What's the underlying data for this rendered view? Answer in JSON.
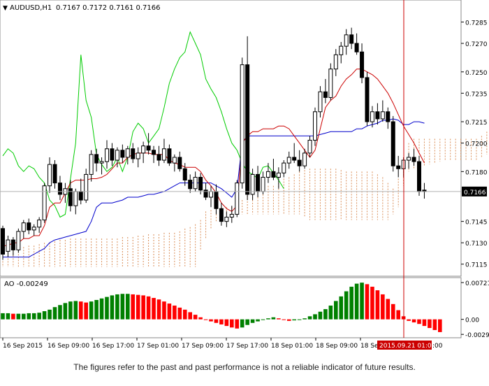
{
  "header": {
    "symbol_label": "AUDUSD,H1",
    "ohlc_label": "0.7167 0.7172 0.7161 0.7166"
  },
  "price_axis": {
    "ticks": [
      "0.7285",
      "0.7270",
      "0.7250",
      "0.7235",
      "0.7215",
      "0.7200",
      "0.7180",
      "0.7166",
      "0.7145",
      "0.7130",
      "0.7115"
    ],
    "current_price": "0.7166"
  },
  "oscillator": {
    "label": "AO -0.00249",
    "ticks": [
      "0.00721",
      "0.00",
      "-0.00295"
    ]
  },
  "time_axis": {
    "labels": [
      "16 Sep 2015",
      "16 Sep 09:00",
      "16 Sep 17:00",
      "17 Sep 01:00",
      "17 Sep 09:00",
      "17 Sep 17:00",
      "18 Sep 01:00",
      "18 Sep 09:00",
      "18 Se"
    ],
    "crosshair_label": "2015.09.21 01:00",
    "crosshair_suffix": ":00"
  },
  "colors": {
    "bull": "#ffffff",
    "bear": "#000000",
    "tenkan": "#cc0000",
    "kijun": "#0000cc",
    "chikou": "#00cc00",
    "cloud": "#d98c55",
    "ao_up": "#008000",
    "ao_down": "#ff0000",
    "crosshair": "#cc0000",
    "price_tag_bg": "#000000"
  },
  "chart_data": {
    "type": "candlestick",
    "symbol": "AUDUSD",
    "timeframe": "H1",
    "ylim": [
      0.7108,
      0.7298
    ],
    "candles": [
      [
        0.714,
        0.7142,
        0.7118,
        0.7122
      ],
      [
        0.7124,
        0.7135,
        0.712,
        0.7132
      ],
      [
        0.7132,
        0.7134,
        0.7121,
        0.7125
      ],
      [
        0.7125,
        0.714,
        0.7123,
        0.7138
      ],
      [
        0.7138,
        0.7146,
        0.7133,
        0.7144
      ],
      [
        0.7144,
        0.7147,
        0.7136,
        0.7139
      ],
      [
        0.7139,
        0.7143,
        0.7135,
        0.7141
      ],
      [
        0.7141,
        0.7148,
        0.7137,
        0.7146
      ],
      [
        0.7146,
        0.7172,
        0.7144,
        0.717
      ],
      [
        0.717,
        0.719,
        0.7165,
        0.7185
      ],
      [
        0.7185,
        0.7188,
        0.7168,
        0.7172
      ],
      [
        0.7172,
        0.7177,
        0.716,
        0.7164
      ],
      [
        0.7164,
        0.7172,
        0.7158,
        0.7168
      ],
      [
        0.7168,
        0.7174,
        0.7152,
        0.7156
      ],
      [
        0.7156,
        0.7168,
        0.715,
        0.7166
      ],
      [
        0.7166,
        0.7175,
        0.7157,
        0.716
      ],
      [
        0.716,
        0.7182,
        0.7158,
        0.7178
      ],
      [
        0.7178,
        0.7195,
        0.7173,
        0.7192
      ],
      [
        0.7192,
        0.7196,
        0.718,
        0.7186
      ],
      [
        0.7186,
        0.719,
        0.7178,
        0.7187
      ],
      [
        0.7187,
        0.7202,
        0.7182,
        0.7196
      ],
      [
        0.7196,
        0.72,
        0.7184,
        0.7188
      ],
      [
        0.7188,
        0.7197,
        0.7183,
        0.7195
      ],
      [
        0.7195,
        0.7199,
        0.7186,
        0.719
      ],
      [
        0.719,
        0.7198,
        0.7185,
        0.7196
      ],
      [
        0.7196,
        0.72,
        0.7186,
        0.7189
      ],
      [
        0.7189,
        0.7197,
        0.7183,
        0.7193
      ],
      [
        0.7193,
        0.7201,
        0.7186,
        0.7198
      ],
      [
        0.7198,
        0.7207,
        0.7192,
        0.7195
      ],
      [
        0.7195,
        0.7198,
        0.7186,
        0.7192
      ],
      [
        0.7192,
        0.7198,
        0.7184,
        0.7188
      ],
      [
        0.7188,
        0.7203,
        0.7186,
        0.7196
      ],
      [
        0.7196,
        0.7199,
        0.7184,
        0.7186
      ],
      [
        0.7186,
        0.7192,
        0.718,
        0.719
      ],
      [
        0.719,
        0.7194,
        0.718,
        0.7182
      ],
      [
        0.7182,
        0.7186,
        0.717,
        0.7174
      ],
      [
        0.7174,
        0.7178,
        0.7165,
        0.7168
      ],
      [
        0.7168,
        0.718,
        0.7166,
        0.7176
      ],
      [
        0.7176,
        0.7179,
        0.7164,
        0.7167
      ],
      [
        0.7167,
        0.7172,
        0.716,
        0.7162
      ],
      [
        0.7162,
        0.717,
        0.7155,
        0.7166
      ],
      [
        0.7166,
        0.7171,
        0.715,
        0.7154
      ],
      [
        0.7154,
        0.7158,
        0.7142,
        0.7145
      ],
      [
        0.7145,
        0.7152,
        0.7141,
        0.7148
      ],
      [
        0.7148,
        0.7156,
        0.7144,
        0.715
      ],
      [
        0.715,
        0.7174,
        0.7148,
        0.7172
      ],
      [
        0.7172,
        0.726,
        0.7168,
        0.7255
      ],
      [
        0.7255,
        0.7275,
        0.716,
        0.7164
      ],
      [
        0.7164,
        0.7182,
        0.716,
        0.7178
      ],
      [
        0.7178,
        0.7184,
        0.7162,
        0.7166
      ],
      [
        0.7166,
        0.718,
        0.7164,
        0.7176
      ],
      [
        0.7176,
        0.7186,
        0.7172,
        0.718
      ],
      [
        0.718,
        0.7189,
        0.7174,
        0.7176
      ],
      [
        0.7176,
        0.7183,
        0.7168,
        0.7179
      ],
      [
        0.7179,
        0.7188,
        0.7176,
        0.7186
      ],
      [
        0.7186,
        0.7194,
        0.7182,
        0.719
      ],
      [
        0.719,
        0.72,
        0.7186,
        0.7188
      ],
      [
        0.7188,
        0.7195,
        0.718,
        0.7184
      ],
      [
        0.7184,
        0.7196,
        0.7182,
        0.7193
      ],
      [
        0.7193,
        0.7205,
        0.719,
        0.7202
      ],
      [
        0.7202,
        0.7225,
        0.7198,
        0.7222
      ],
      [
        0.7222,
        0.724,
        0.7218,
        0.7236
      ],
      [
        0.7236,
        0.7245,
        0.7228,
        0.7232
      ],
      [
        0.7232,
        0.7256,
        0.723,
        0.7252
      ],
      [
        0.7252,
        0.7266,
        0.7247,
        0.7262
      ],
      [
        0.7262,
        0.7271,
        0.7256,
        0.7268
      ],
      [
        0.7268,
        0.728,
        0.7262,
        0.7276
      ],
      [
        0.7276,
        0.7281,
        0.7266,
        0.727
      ],
      [
        0.727,
        0.7277,
        0.7262,
        0.7264
      ],
      [
        0.7264,
        0.727,
        0.7242,
        0.7246
      ],
      [
        0.7246,
        0.725,
        0.7212,
        0.7215
      ],
      [
        0.7215,
        0.7226,
        0.7211,
        0.7222
      ],
      [
        0.7222,
        0.7228,
        0.7213,
        0.7217
      ],
      [
        0.7217,
        0.723,
        0.7215,
        0.7222
      ],
      [
        0.7222,
        0.7225,
        0.721,
        0.7215
      ],
      [
        0.7215,
        0.7219,
        0.718,
        0.7184
      ],
      [
        0.7184,
        0.7191,
        0.7176,
        0.7182
      ],
      [
        0.7182,
        0.719,
        0.7176,
        0.7188
      ],
      [
        0.7188,
        0.7193,
        0.7182,
        0.719
      ],
      [
        0.719,
        0.7196,
        0.7184,
        0.7187
      ],
      [
        0.7187,
        0.7191,
        0.7163,
        0.7166
      ],
      [
        0.7167,
        0.7172,
        0.7161,
        0.7166
      ]
    ],
    "tenkan": [
      0.7128,
      0.7128,
      0.713,
      0.713,
      0.7133,
      0.7133,
      0.7135,
      0.7135,
      0.7142,
      0.7155,
      0.7158,
      0.7158,
      0.7165,
      0.7172,
      0.7174,
      0.7174,
      0.7174,
      0.7175,
      0.7175,
      0.7176,
      0.7178,
      0.7182,
      0.7186,
      0.7186,
      0.719,
      0.7192,
      0.7193,
      0.7193,
      0.7193,
      0.7192,
      0.7192,
      0.7192,
      0.7188,
      0.7186,
      0.7185,
      0.7183,
      0.7183,
      0.7183,
      0.718,
      0.7174,
      0.717,
      0.7165,
      0.7158,
      0.7154,
      0.7152,
      0.7156,
      0.72,
      0.7205,
      0.7208,
      0.7208,
      0.721,
      0.721,
      0.721,
      0.7212,
      0.7212,
      0.721,
      0.7205,
      0.72,
      0.7195,
      0.719,
      0.7195,
      0.721,
      0.7225,
      0.723,
      0.7233,
      0.724,
      0.7245,
      0.7248,
      0.7252,
      0.7252,
      0.725,
      0.7248,
      0.7245,
      0.724,
      0.7235,
      0.7228,
      0.722,
      0.7212,
      0.7206,
      0.72,
      0.7193,
      0.7186
    ],
    "kijun": [
      0.712,
      0.712,
      0.712,
      0.712,
      0.712,
      0.712,
      0.7122,
      0.7124,
      0.7126,
      0.713,
      0.7132,
      0.7133,
      0.7134,
      0.7135,
      0.7136,
      0.7137,
      0.7138,
      0.7145,
      0.7155,
      0.7158,
      0.7158,
      0.7158,
      0.7159,
      0.716,
      0.7162,
      0.7162,
      0.7162,
      0.7163,
      0.7164,
      0.7164,
      0.7165,
      0.7166,
      0.7168,
      0.717,
      0.7172,
      0.7172,
      0.7172,
      0.7172,
      0.7172,
      0.7172,
      0.7172,
      0.717,
      0.7168,
      0.7165,
      0.7162,
      0.7168,
      0.72,
      0.7205,
      0.7205,
      0.7205,
      0.7205,
      0.7205,
      0.7205,
      0.7205,
      0.7205,
      0.7205,
      0.7205,
      0.7205,
      0.7205,
      0.7205,
      0.7205,
      0.7206,
      0.7207,
      0.7208,
      0.7208,
      0.7208,
      0.7208,
      0.7208,
      0.721,
      0.721,
      0.7212,
      0.7213,
      0.7214,
      0.7216,
      0.7216,
      0.7217,
      0.7216,
      0.7213,
      0.7213,
      0.7215,
      0.7215,
      0.7214
    ],
    "chikou": [
      0.7191,
      0.7196,
      0.7193,
      0.7184,
      0.718,
      0.7184,
      0.7182,
      0.7176,
      0.7172,
      0.716,
      0.7156,
      0.7148,
      0.715,
      0.7175,
      0.72,
      0.7262,
      0.723,
      0.7218,
      0.7192,
      0.7185,
      0.718,
      0.7183,
      0.719,
      0.718,
      0.719,
      0.7208,
      0.7214,
      0.721,
      0.72,
      0.7205,
      0.721,
      0.7225,
      0.7242,
      0.7252,
      0.726,
      0.7264,
      0.7278,
      0.727,
      0.7262,
      0.7245,
      0.7238,
      0.7232,
      0.7222,
      0.721,
      0.72,
      0.7195,
      0.7186,
      0.718,
      0.7178,
      0.7175,
      0.7183,
      0.7184,
      0.7179,
      0.7174,
      0.7168
    ],
    "cloud_top": [
      0.7123,
      0.7123,
      0.7125,
      0.7126,
      0.7127,
      0.7128,
      0.7128,
      0.7129,
      0.713,
      0.713,
      0.7131,
      0.7132,
      0.7132,
      0.7133,
      0.7133,
      0.7133,
      0.7133,
      0.7133,
      0.7133,
      0.7133,
      0.7133,
      0.7133,
      0.7133,
      0.7134,
      0.7134,
      0.7134,
      0.7135,
      0.7135,
      0.7136,
      0.7136,
      0.7136,
      0.7137,
      0.7137,
      0.7137,
      0.7138,
      0.714,
      0.7141,
      0.7143,
      0.7146,
      0.7152,
      0.7153,
      0.7154,
      0.7155,
      0.7155,
      0.7155,
      0.7158,
      0.716,
      0.7163,
      0.7164,
      0.7168,
      0.717,
      0.717,
      0.717,
      0.7172,
      0.7175,
      0.7176,
      0.7178,
      0.718,
      0.7181,
      0.7182,
      0.7182,
      0.7182,
      0.7182,
      0.7182,
      0.7182,
      0.7181,
      0.718,
      0.718,
      0.718,
      0.718,
      0.718,
      0.718,
      0.7178,
      0.7176,
      0.7172,
      0.7168,
      0.7175,
      0.719,
      0.72,
      0.7203,
      0.7203,
      0.7203,
      0.7203,
      0.7203,
      0.7203,
      0.7203,
      0.7203,
      0.7203,
      0.7203,
      0.7203,
      0.7203,
      0.7203,
      0.7205,
      0.7208,
      0.721,
      0.7208,
      0.7205,
      0.72,
      0.72,
      0.72,
      0.7202,
      0.7203
    ],
    "cloud_bottom": [
      0.7113,
      0.7113,
      0.7113,
      0.7113,
      0.7113,
      0.7113,
      0.7113,
      0.7113,
      0.7113,
      0.7113,
      0.7113,
      0.7113,
      0.7113,
      0.7113,
      0.7113,
      0.7113,
      0.7113,
      0.7113,
      0.7113,
      0.7113,
      0.7113,
      0.7113,
      0.7113,
      0.7113,
      0.7113,
      0.7113,
      0.7113,
      0.7113,
      0.7113,
      0.7113,
      0.7113,
      0.7113,
      0.7113,
      0.7113,
      0.7113,
      0.7113,
      0.7113,
      0.7113,
      0.7125,
      0.7133,
      0.714,
      0.7145,
      0.7148,
      0.715,
      0.715,
      0.715,
      0.715,
      0.715,
      0.715,
      0.715,
      0.715,
      0.715,
      0.715,
      0.715,
      0.715,
      0.715,
      0.715,
      0.715,
      0.7148,
      0.7146,
      0.7146,
      0.7146,
      0.7146,
      0.7146,
      0.7146,
      0.7146,
      0.7146,
      0.7146,
      0.7146,
      0.7146,
      0.7146,
      0.7146,
      0.7146,
      0.7146,
      0.7146,
      0.715,
      0.7155,
      0.717,
      0.718,
      0.7182,
      0.7183,
      0.7184,
      0.7185,
      0.7186,
      0.7187,
      0.7188,
      0.7188,
      0.7188,
      0.7188,
      0.7188,
      0.7188,
      0.7188,
      0.719,
      0.7192,
      0.7193,
      0.7195,
      0.7197,
      0.7198,
      0.7198,
      0.7198,
      0.7199,
      0.7199
    ],
    "ao": [
      0.0012,
      0.0012,
      0.0011,
      0.0011,
      0.0011,
      0.0012,
      0.0012,
      0.0013,
      0.0016,
      0.0019,
      0.0024,
      0.0028,
      0.0032,
      0.0035,
      0.0036,
      0.0035,
      0.0033,
      0.0035,
      0.0038,
      0.0041,
      0.0044,
      0.0047,
      0.0049,
      0.005,
      0.005,
      0.0049,
      0.0048,
      0.0047,
      0.0045,
      0.0042,
      0.0039,
      0.0035,
      0.0031,
      0.0027,
      0.0023,
      0.0019,
      0.0014,
      0.0009,
      0.0004,
      0.0,
      -0.0004,
      -0.0007,
      -0.001,
      -0.0013,
      -0.0016,
      -0.0018,
      -0.0016,
      -0.0011,
      -0.0007,
      -0.0004,
      -0.0001,
      0.0002,
      0.0004,
      0.0002,
      -0.0001,
      -0.0003,
      -0.0002,
      -0.0001,
      0.0002,
      0.0006,
      0.001,
      0.0015,
      0.002,
      0.0027,
      0.0036,
      0.0045,
      0.0055,
      0.0064,
      0.007,
      0.0072,
      0.0069,
      0.0064,
      0.0057,
      0.0049,
      0.004,
      0.003,
      0.0018,
      0.0006,
      -0.0003,
      -0.0006,
      -0.0009,
      -0.0013,
      -0.0017,
      -0.0021,
      -0.0025
    ],
    "ao_ylim": [
      -0.0032,
      0.0075
    ],
    "ao_type": "histogram"
  }
}
